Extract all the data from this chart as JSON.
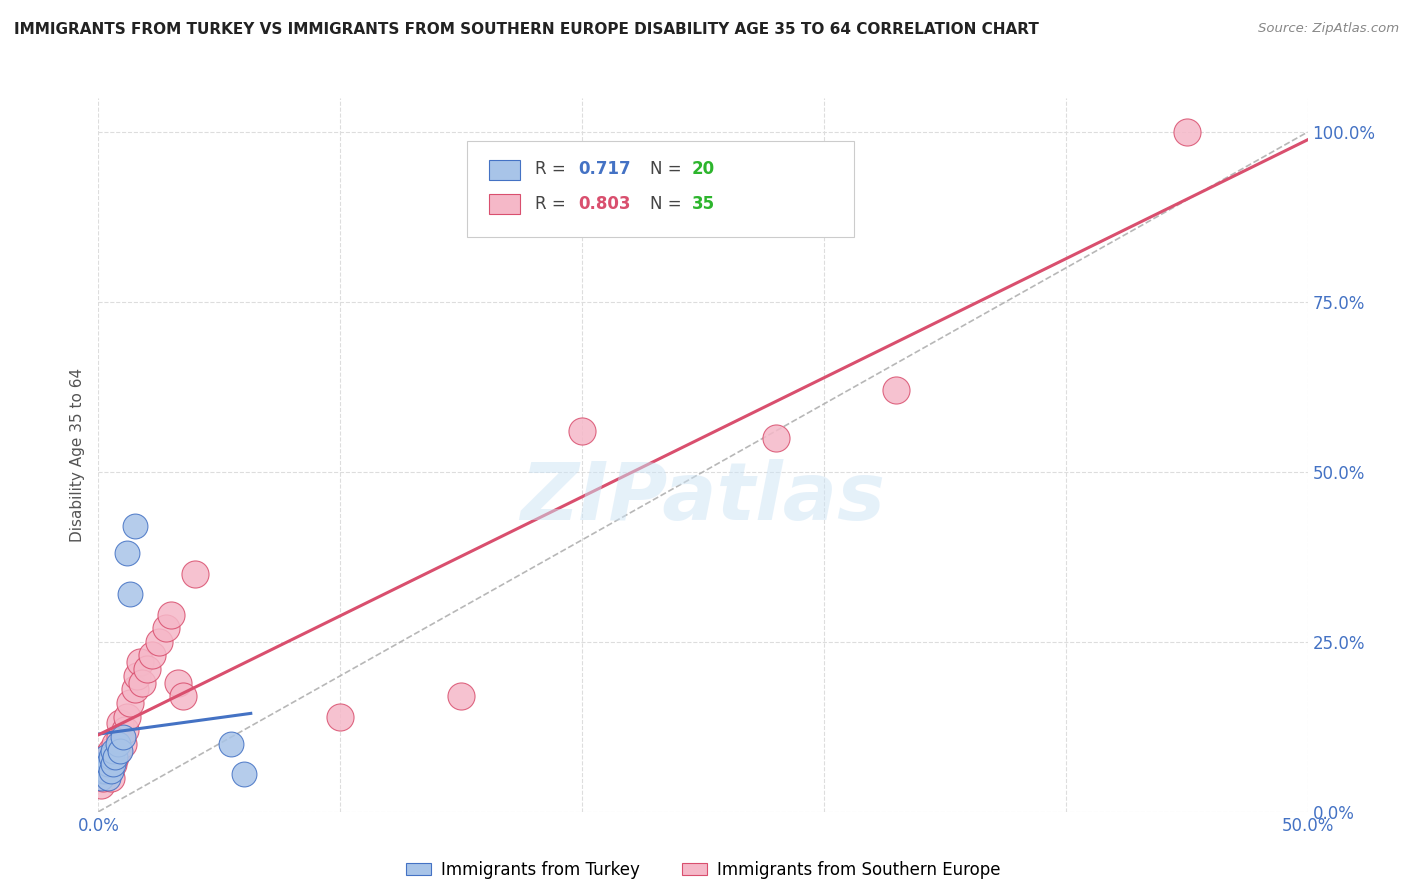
{
  "title": "IMMIGRANTS FROM TURKEY VS IMMIGRANTS FROM SOUTHERN EUROPE DISABILITY AGE 35 TO 64 CORRELATION CHART",
  "source": "Source: ZipAtlas.com",
  "ylabel_label": "Disability Age 35 to 64",
  "xlim": [
    0.0,
    0.5
  ],
  "ylim": [
    0.0,
    1.05
  ],
  "x_ticks": [
    0.0,
    0.1,
    0.2,
    0.3,
    0.4,
    0.5
  ],
  "x_tick_labels": [
    "0.0%",
    "",
    "",
    "",
    "",
    "50.0%"
  ],
  "y_ticks_right": [
    0.0,
    0.25,
    0.5,
    0.75,
    1.0
  ],
  "y_tick_labels_right": [
    "0.0%",
    "25.0%",
    "50.0%",
    "75.0%",
    "100.0%"
  ],
  "watermark": "ZIPatlas",
  "turkey_color": "#a8c4e8",
  "turkey_color_line": "#4472c4",
  "southern_color": "#f5b8c8",
  "southern_color_line": "#d94f6e",
  "R_turkey": 0.717,
  "N_turkey": 20,
  "R_southern": 0.803,
  "N_southern": 35,
  "turkey_x": [
    0.001,
    0.002,
    0.002,
    0.003,
    0.003,
    0.004,
    0.004,
    0.005,
    0.005,
    0.006,
    0.006,
    0.007,
    0.008,
    0.009,
    0.01,
    0.012,
    0.013,
    0.015,
    0.055,
    0.06
  ],
  "turkey_y": [
    0.05,
    0.06,
    0.07,
    0.06,
    0.08,
    0.05,
    0.07,
    0.06,
    0.08,
    0.07,
    0.09,
    0.08,
    0.1,
    0.09,
    0.11,
    0.38,
    0.32,
    0.42,
    0.1,
    0.055
  ],
  "southern_x": [
    0.001,
    0.002,
    0.003,
    0.003,
    0.004,
    0.005,
    0.005,
    0.006,
    0.007,
    0.007,
    0.008,
    0.009,
    0.009,
    0.01,
    0.011,
    0.012,
    0.013,
    0.015,
    0.016,
    0.017,
    0.018,
    0.02,
    0.022,
    0.025,
    0.028,
    0.03,
    0.033,
    0.035,
    0.04,
    0.1,
    0.15,
    0.2,
    0.28,
    0.33,
    0.45
  ],
  "southern_y": [
    0.04,
    0.05,
    0.06,
    0.08,
    0.07,
    0.05,
    0.09,
    0.07,
    0.08,
    0.1,
    0.09,
    0.11,
    0.13,
    0.1,
    0.12,
    0.14,
    0.16,
    0.18,
    0.2,
    0.22,
    0.19,
    0.21,
    0.23,
    0.25,
    0.27,
    0.29,
    0.19,
    0.17,
    0.35,
    0.14,
    0.17,
    0.56,
    0.55,
    0.62,
    1.0
  ],
  "background_color": "#ffffff",
  "grid_color": "#dddddd"
}
